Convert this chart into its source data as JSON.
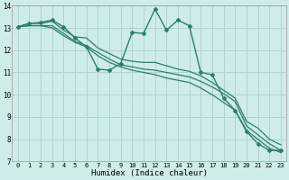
{
  "xlabel": "Humidex (Indice chaleur)",
  "background_color": "#ceecea",
  "grid_color": "#aed4d0",
  "line_color": "#2e7d6e",
  "xlim": [
    -0.5,
    23.5
  ],
  "ylim": [
    7,
    14
  ],
  "yticks": [
    7,
    8,
    9,
    10,
    11,
    12,
    13,
    14
  ],
  "xticks": [
    0,
    1,
    2,
    3,
    4,
    5,
    6,
    7,
    8,
    9,
    10,
    11,
    12,
    13,
    14,
    15,
    16,
    17,
    18,
    19,
    20,
    21,
    22,
    23
  ],
  "series": [
    [
      13.05,
      13.2,
      13.25,
      13.35,
      13.05,
      12.55,
      12.15,
      11.15,
      11.1,
      11.4,
      12.8,
      12.75,
      13.85,
      12.9,
      13.35,
      13.1,
      11.0,
      10.9,
      9.85,
      9.3,
      8.35,
      7.8,
      7.5,
      7.5
    ],
    [
      13.05,
      13.2,
      13.2,
      13.3,
      12.9,
      12.6,
      12.55,
      12.1,
      11.85,
      11.6,
      11.5,
      11.45,
      11.45,
      11.3,
      11.15,
      11.05,
      10.85,
      10.55,
      10.2,
      9.85,
      8.8,
      8.5,
      8.0,
      7.75
    ],
    [
      13.05,
      13.1,
      13.1,
      13.1,
      12.75,
      12.4,
      12.2,
      11.9,
      11.6,
      11.35,
      11.25,
      11.15,
      11.1,
      11.0,
      10.9,
      10.8,
      10.6,
      10.35,
      10.05,
      9.7,
      8.6,
      8.2,
      7.8,
      7.5
    ],
    [
      13.05,
      13.1,
      13.1,
      13.0,
      12.65,
      12.35,
      12.15,
      11.75,
      11.45,
      11.25,
      11.1,
      11.0,
      10.9,
      10.75,
      10.65,
      10.55,
      10.3,
      10.0,
      9.65,
      9.3,
      8.4,
      8.0,
      7.6,
      7.4
    ]
  ]
}
